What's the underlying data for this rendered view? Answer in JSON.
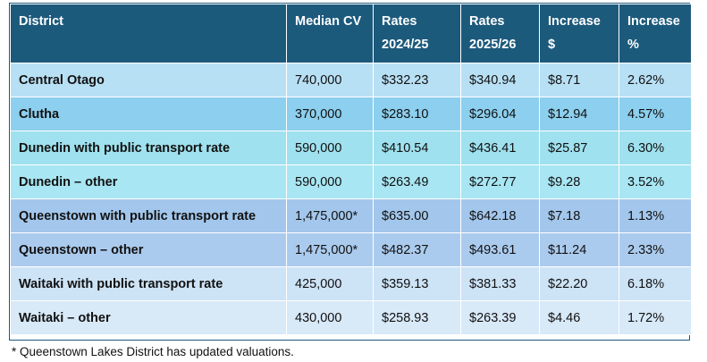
{
  "table": {
    "headers": [
      {
        "line1": "District",
        "line2": ""
      },
      {
        "line1": "Median CV",
        "line2": ""
      },
      {
        "line1": "Rates",
        "line2": "2024/25"
      },
      {
        "line1": "Rates",
        "line2": "2025/26"
      },
      {
        "line1": "Increase",
        "line2": "$"
      },
      {
        "line1": "Increase",
        "line2": "%"
      }
    ],
    "rows": [
      {
        "district": "Central Otago",
        "median_cv": "740,000",
        "rates_2024_25": "$332.23",
        "rates_2025_26": "$340.94",
        "increase_dollar": "$8.71",
        "increase_pct": "2.62%"
      },
      {
        "district": "Clutha",
        "median_cv": "370,000",
        "rates_2024_25": "$283.10",
        "rates_2025_26": "$296.04",
        "increase_dollar": "$12.94",
        "increase_pct": "4.57%"
      },
      {
        "district": "Dunedin with public transport rate",
        "median_cv": "590,000",
        "rates_2024_25": "$410.54",
        "rates_2025_26": "$436.41",
        "increase_dollar": "$25.87",
        "increase_pct": "6.30%"
      },
      {
        "district": "Dunedin – other",
        "median_cv": "590,000",
        "rates_2024_25": "$263.49",
        "rates_2025_26": "$272.77",
        "increase_dollar": "$9.28",
        "increase_pct": "3.52%"
      },
      {
        "district": "Queenstown with public transport rate",
        "median_cv": "1,475,000*",
        "rates_2024_25": "$635.00",
        "rates_2025_26": "$642.18",
        "increase_dollar": "$7.18",
        "increase_pct": "1.13%"
      },
      {
        "district": "Queenstown – other",
        "median_cv": "1,475,000*",
        "rates_2024_25": "$482.37",
        "rates_2025_26": "$493.61",
        "increase_dollar": "$11.24",
        "increase_pct": "2.33%"
      },
      {
        "district": "Waitaki with public transport rate",
        "median_cv": "425,000",
        "rates_2024_25": "$359.13",
        "rates_2025_26": "$381.33",
        "increase_dollar": "$22.20",
        "increase_pct": "6.18%"
      },
      {
        "district": "Waitaki – other",
        "median_cv": "430,000",
        "rates_2024_25": "$258.93",
        "rates_2025_26": "$263.39",
        "increase_dollar": "$4.46",
        "increase_pct": "1.72%"
      }
    ]
  },
  "footnote": "* Queenstown Lakes District has updated valuations.",
  "colors": {
    "header_bg": "#1c5a7c",
    "header_text": "#ffffff"
  }
}
